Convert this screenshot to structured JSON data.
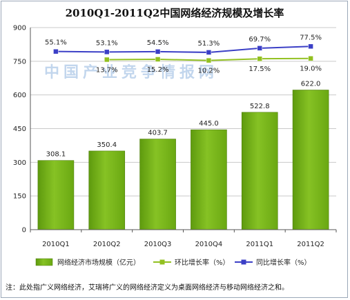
{
  "chart_data": {
    "type": "bar",
    "title": "2010Q1-2011Q2中国网络经济规模及增长率",
    "categories": [
      "2010Q1",
      "2010Q2",
      "2010Q3",
      "2010Q4",
      "2011Q1",
      "2011Q2"
    ],
    "series": [
      {
        "name": "网络经济市场规模（亿元）",
        "kind": "bar",
        "color": "#7ab317",
        "values": [
          308.1,
          350.4,
          403.7,
          445.0,
          522.8,
          622.0
        ],
        "labels": [
          "308.1",
          "350.4",
          "403.7",
          "445.0",
          "522.8",
          "622.0"
        ]
      },
      {
        "name": "环比增长率（%）",
        "kind": "line",
        "color": "#92c020",
        "values": [
          null,
          13.7,
          15.2,
          10.2,
          17.5,
          19.0
        ],
        "labels": [
          "",
          "13.7%",
          "15.2%",
          "10.2%",
          "17.5%",
          "19.0%"
        ]
      },
      {
        "name": "同比增长率（%）",
        "kind": "line",
        "color": "#3b3fc6",
        "values": [
          55.1,
          53.1,
          54.5,
          51.3,
          69.7,
          77.5
        ],
        "labels": [
          "55.1%",
          "53.1%",
          "54.5%",
          "51.3%",
          "69.7%",
          "77.5%"
        ]
      }
    ],
    "y_ticks": [
      "0",
      "150",
      "300",
      "450",
      "600",
      "750",
      "900"
    ],
    "ylim": [
      0,
      900
    ],
    "grid": true,
    "legend": "bottom",
    "watermark": "中国产业竞争情报网"
  },
  "note": "注：此处指广义网络经济，艾瑞将广义的网络经济定义为桌面网络经济与移动网络经济之和。"
}
